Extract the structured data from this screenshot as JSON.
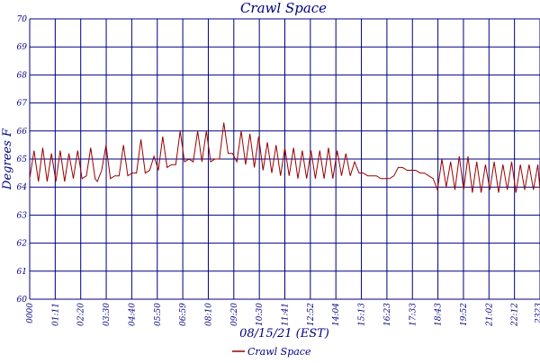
{
  "chart_data": {
    "type": "line",
    "title": "Crawl Space",
    "xlabel": "08/15/21 (EST)",
    "ylabel": "Degrees F",
    "ylim": [
      60,
      70
    ],
    "yticks": [
      60,
      61,
      62,
      63,
      64,
      65,
      66,
      67,
      68,
      69,
      70
    ],
    "xticks": [
      "0000",
      "01:11",
      "02:20",
      "03:30",
      "04:40",
      "05:50",
      "06:59",
      "08:10",
      "09:20",
      "10:30",
      "11:41",
      "12:52",
      "14:04",
      "15:13",
      "16:23",
      "17:33",
      "18:43",
      "19:52",
      "21:02",
      "22:12",
      "2323"
    ],
    "grid": true,
    "legend_position": "bottom",
    "colors": {
      "series": "#990000",
      "grid": "#000080",
      "text": "#000080"
    },
    "series": [
      {
        "name": "Crawl Space",
        "x_hours": [
          0.0,
          0.2,
          0.4,
          0.6,
          0.8,
          1.0,
          1.2,
          1.4,
          1.6,
          1.8,
          2.0,
          2.2,
          2.4,
          2.6,
          2.8,
          3.0,
          3.1,
          3.3,
          3.5,
          3.7,
          3.9,
          4.1,
          4.3,
          4.5,
          4.7,
          4.9,
          5.1,
          5.3,
          5.5,
          5.7,
          5.9,
          6.1,
          6.3,
          6.5,
          6.7,
          6.9,
          7.1,
          7.3,
          7.5,
          7.7,
          7.9,
          8.1,
          8.3,
          8.5,
          8.7,
          8.9,
          9.1,
          9.3,
          9.5,
          9.7,
          9.9,
          10.1,
          10.3,
          10.5,
          10.7,
          10.9,
          11.1,
          11.3,
          11.5,
          11.7,
          11.9,
          12.1,
          12.3,
          12.5,
          12.7,
          12.9,
          13.1,
          13.3,
          13.5,
          13.7,
          13.9,
          14.1,
          14.3,
          14.5,
          14.7,
          14.9,
          15.1,
          15.3,
          15.5,
          15.7,
          15.9,
          16.1,
          16.3,
          16.5,
          16.7,
          16.9,
          17.1,
          17.3,
          17.5,
          17.7,
          17.9,
          18.1,
          18.3,
          18.5,
          18.7,
          18.9,
          19.1,
          19.3,
          19.5,
          19.7,
          19.9,
          20.1,
          20.3,
          20.5,
          20.7,
          20.9,
          21.1,
          21.3,
          21.5,
          21.7,
          21.9,
          22.1,
          22.3,
          22.5,
          22.7,
          22.9,
          23.1,
          23.3,
          23.4
        ],
        "temps_f": [
          64.3,
          65.3,
          64.2,
          65.4,
          64.2,
          65.2,
          64.2,
          65.3,
          64.2,
          65.2,
          64.3,
          65.3,
          64.3,
          64.4,
          65.4,
          64.3,
          64.2,
          64.6,
          65.5,
          64.3,
          64.4,
          64.4,
          65.5,
          64.4,
          64.5,
          64.5,
          65.7,
          64.5,
          64.6,
          65.1,
          64.6,
          65.8,
          64.7,
          64.8,
          64.8,
          66.0,
          64.9,
          65.0,
          64.9,
          66.0,
          64.9,
          66.0,
          64.9,
          65.0,
          65.0,
          66.3,
          65.2,
          65.2,
          64.9,
          66.0,
          64.8,
          65.9,
          64.7,
          65.8,
          64.6,
          65.6,
          64.5,
          65.5,
          64.4,
          65.4,
          64.4,
          65.4,
          64.3,
          65.3,
          64.3,
          65.3,
          64.3,
          65.3,
          64.3,
          65.4,
          64.3,
          65.3,
          64.4,
          65.2,
          64.4,
          64.9,
          64.5,
          64.5,
          64.4,
          64.4,
          64.4,
          64.3,
          64.3,
          64.3,
          64.4,
          64.7,
          64.7,
          64.6,
          64.6,
          64.6,
          64.5,
          64.5,
          64.4,
          64.3,
          63.9,
          65.0,
          64.0,
          64.9,
          63.9,
          65.1,
          63.9,
          65.1,
          63.8,
          64.9,
          63.8,
          64.8,
          63.9,
          64.9,
          63.8,
          64.8,
          63.9,
          64.9,
          63.8,
          64.8,
          63.9,
          64.8,
          63.9,
          64.8,
          63.9
        ]
      }
    ]
  },
  "legend": {
    "label": "Crawl Space"
  }
}
